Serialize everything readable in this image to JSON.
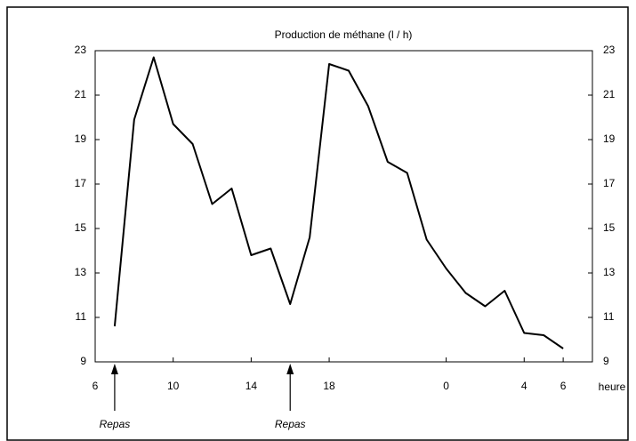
{
  "chart_data": {
    "type": "line",
    "title": "Production de méthane (l / h)",
    "x_label": "heure",
    "x": [
      7,
      8,
      9,
      10,
      11,
      12,
      13,
      14,
      15,
      16,
      17,
      18,
      19,
      20,
      21,
      22,
      23,
      24,
      25,
      26,
      27,
      28,
      29,
      30
    ],
    "series": [
      {
        "color": "#000000",
        "values": [
          10.6,
          19.9,
          22.7,
          19.7,
          18.8,
          16.1,
          16.8,
          13.8,
          14.1,
          11.6,
          14.6,
          22.4,
          22.1,
          20.5,
          18.0,
          17.5,
          14.5,
          13.2,
          12.1,
          11.5,
          12.2,
          10.3,
          10.2,
          9.6
        ]
      }
    ],
    "xlim": [
      6,
      31.5
    ],
    "xticks": [
      6,
      10,
      14,
      18,
      {
        "value": 24,
        "label": "0"
      },
      {
        "value": 28,
        "label": "4"
      },
      {
        "value": 30,
        "label": "6"
      }
    ],
    "ylim": [
      9,
      23
    ],
    "yticks": [
      9,
      11,
      13,
      15,
      17,
      19,
      21,
      23
    ],
    "right_axis": true,
    "annotations": [
      {
        "text": "Repas",
        "x": 7
      },
      {
        "text": "Repas",
        "x": 16
      }
    ]
  }
}
